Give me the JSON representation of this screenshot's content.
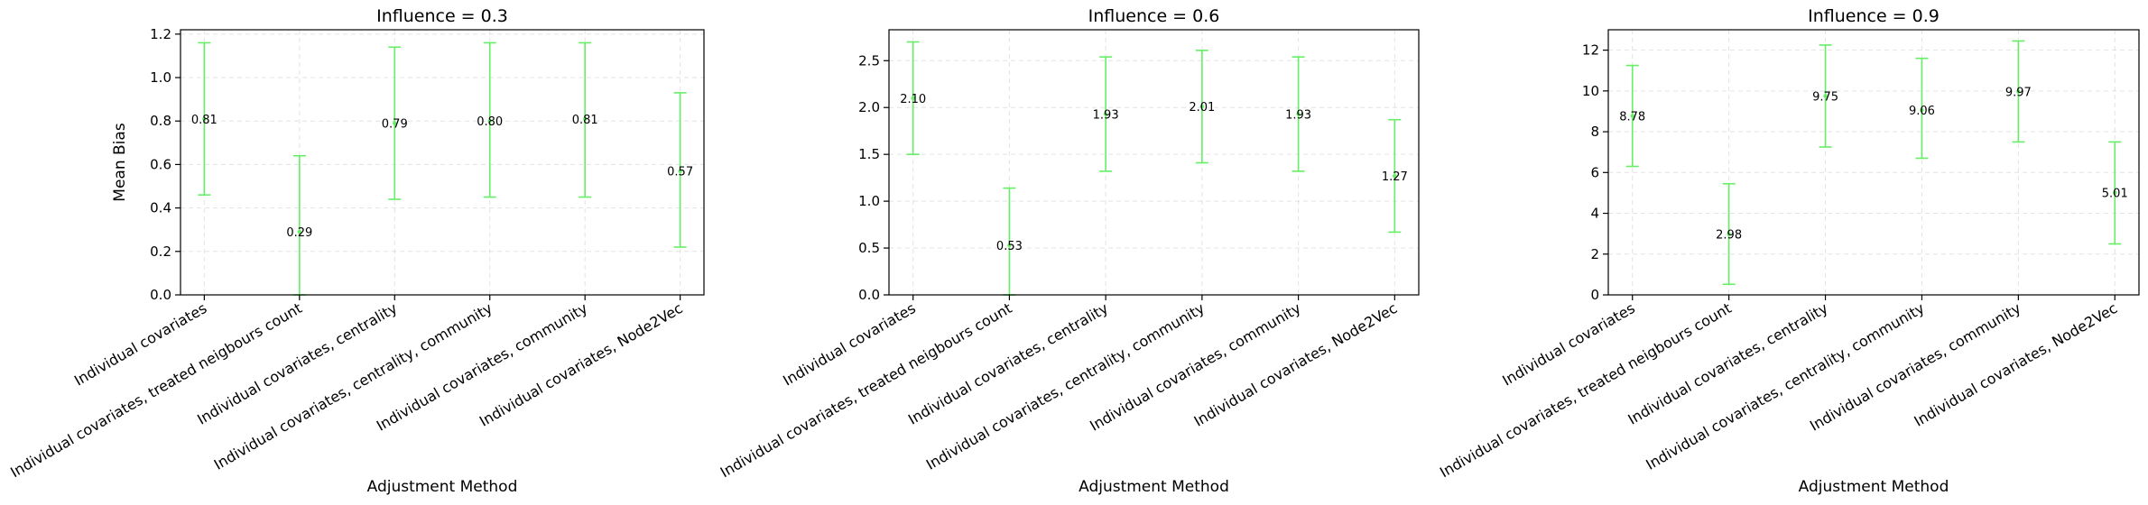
{
  "chart_data": [
    {
      "type": "errorbar",
      "title": "Influence = 0.3",
      "xlabel": "Adjustment Method",
      "ylabel": "Mean Bias",
      "ylim": [
        0,
        1.22
      ],
      "yticks": [
        "0.0",
        "0.2",
        "0.4",
        "0.6",
        "0.8",
        "1.0",
        "1.2"
      ],
      "ytick_values": [
        0,
        0.2,
        0.4,
        0.6,
        0.8,
        1.0,
        1.2
      ],
      "grid": true,
      "color": "#66ee66",
      "categories": [
        "Individual covariates",
        "Individual covariates, treated neigbours count",
        "Individual covariates, centrality",
        "Individual covariates, centrality, community",
        "Individual covariates, community",
        "Individual covariates, Node2Vec"
      ],
      "values": [
        0.81,
        0.29,
        0.79,
        0.8,
        0.81,
        0.57
      ],
      "value_labels": [
        "0.81",
        "0.29",
        "0.79",
        "0.80",
        "0.81",
        "0.57"
      ],
      "lower": [
        0.46,
        0.0,
        0.44,
        0.45,
        0.45,
        0.22
      ],
      "upper": [
        1.16,
        0.64,
        1.14,
        1.16,
        1.16,
        0.93
      ]
    },
    {
      "type": "errorbar",
      "title": "Influence = 0.6",
      "xlabel": "Adjustment Method",
      "ylabel": "",
      "ylim": [
        0,
        2.83
      ],
      "yticks": [
        "0.0",
        "0.5",
        "1.0",
        "1.5",
        "2.0",
        "2.5"
      ],
      "ytick_values": [
        0,
        0.5,
        1.0,
        1.5,
        2.0,
        2.5
      ],
      "grid": true,
      "color": "#66ee66",
      "categories": [
        "Individual covariates",
        "Individual covariates, treated neigbours count",
        "Individual covariates, centrality",
        "Individual covariates, centrality, community",
        "Individual covariates, community",
        "Individual covariates, Node2Vec"
      ],
      "values": [
        2.1,
        0.53,
        1.93,
        2.01,
        1.93,
        1.27
      ],
      "value_labels": [
        "2.10",
        "0.53",
        "1.93",
        "2.01",
        "1.93",
        "1.27"
      ],
      "lower": [
        1.5,
        0.0,
        1.32,
        1.41,
        1.32,
        0.67
      ],
      "upper": [
        2.7,
        1.14,
        2.54,
        2.61,
        2.54,
        1.87
      ]
    },
    {
      "type": "errorbar",
      "title": "Influence = 0.9",
      "xlabel": "Adjustment Method",
      "ylabel": "",
      "ylim": [
        0,
        13.0
      ],
      "yticks": [
        "0",
        "2",
        "4",
        "6",
        "8",
        "10",
        "12"
      ],
      "ytick_values": [
        0,
        2,
        4,
        6,
        8,
        10,
        12
      ],
      "grid": true,
      "color": "#66ee66",
      "categories": [
        "Individual covariates",
        "Individual covariates, treated neigbours count",
        "Individual covariates, centrality",
        "Individual covariates, centrality, community",
        "Individual covariates, community",
        "Individual covariates, Node2Vec"
      ],
      "values": [
        8.78,
        2.98,
        9.75,
        9.06,
        9.97,
        5.01
      ],
      "value_labels": [
        "8.78",
        "2.98",
        "9.75",
        "9.06",
        "9.97",
        "5.01"
      ],
      "lower": [
        6.3,
        0.52,
        7.25,
        6.7,
        7.5,
        2.5
      ],
      "upper": [
        11.25,
        5.45,
        12.25,
        11.6,
        12.45,
        7.5
      ]
    }
  ]
}
